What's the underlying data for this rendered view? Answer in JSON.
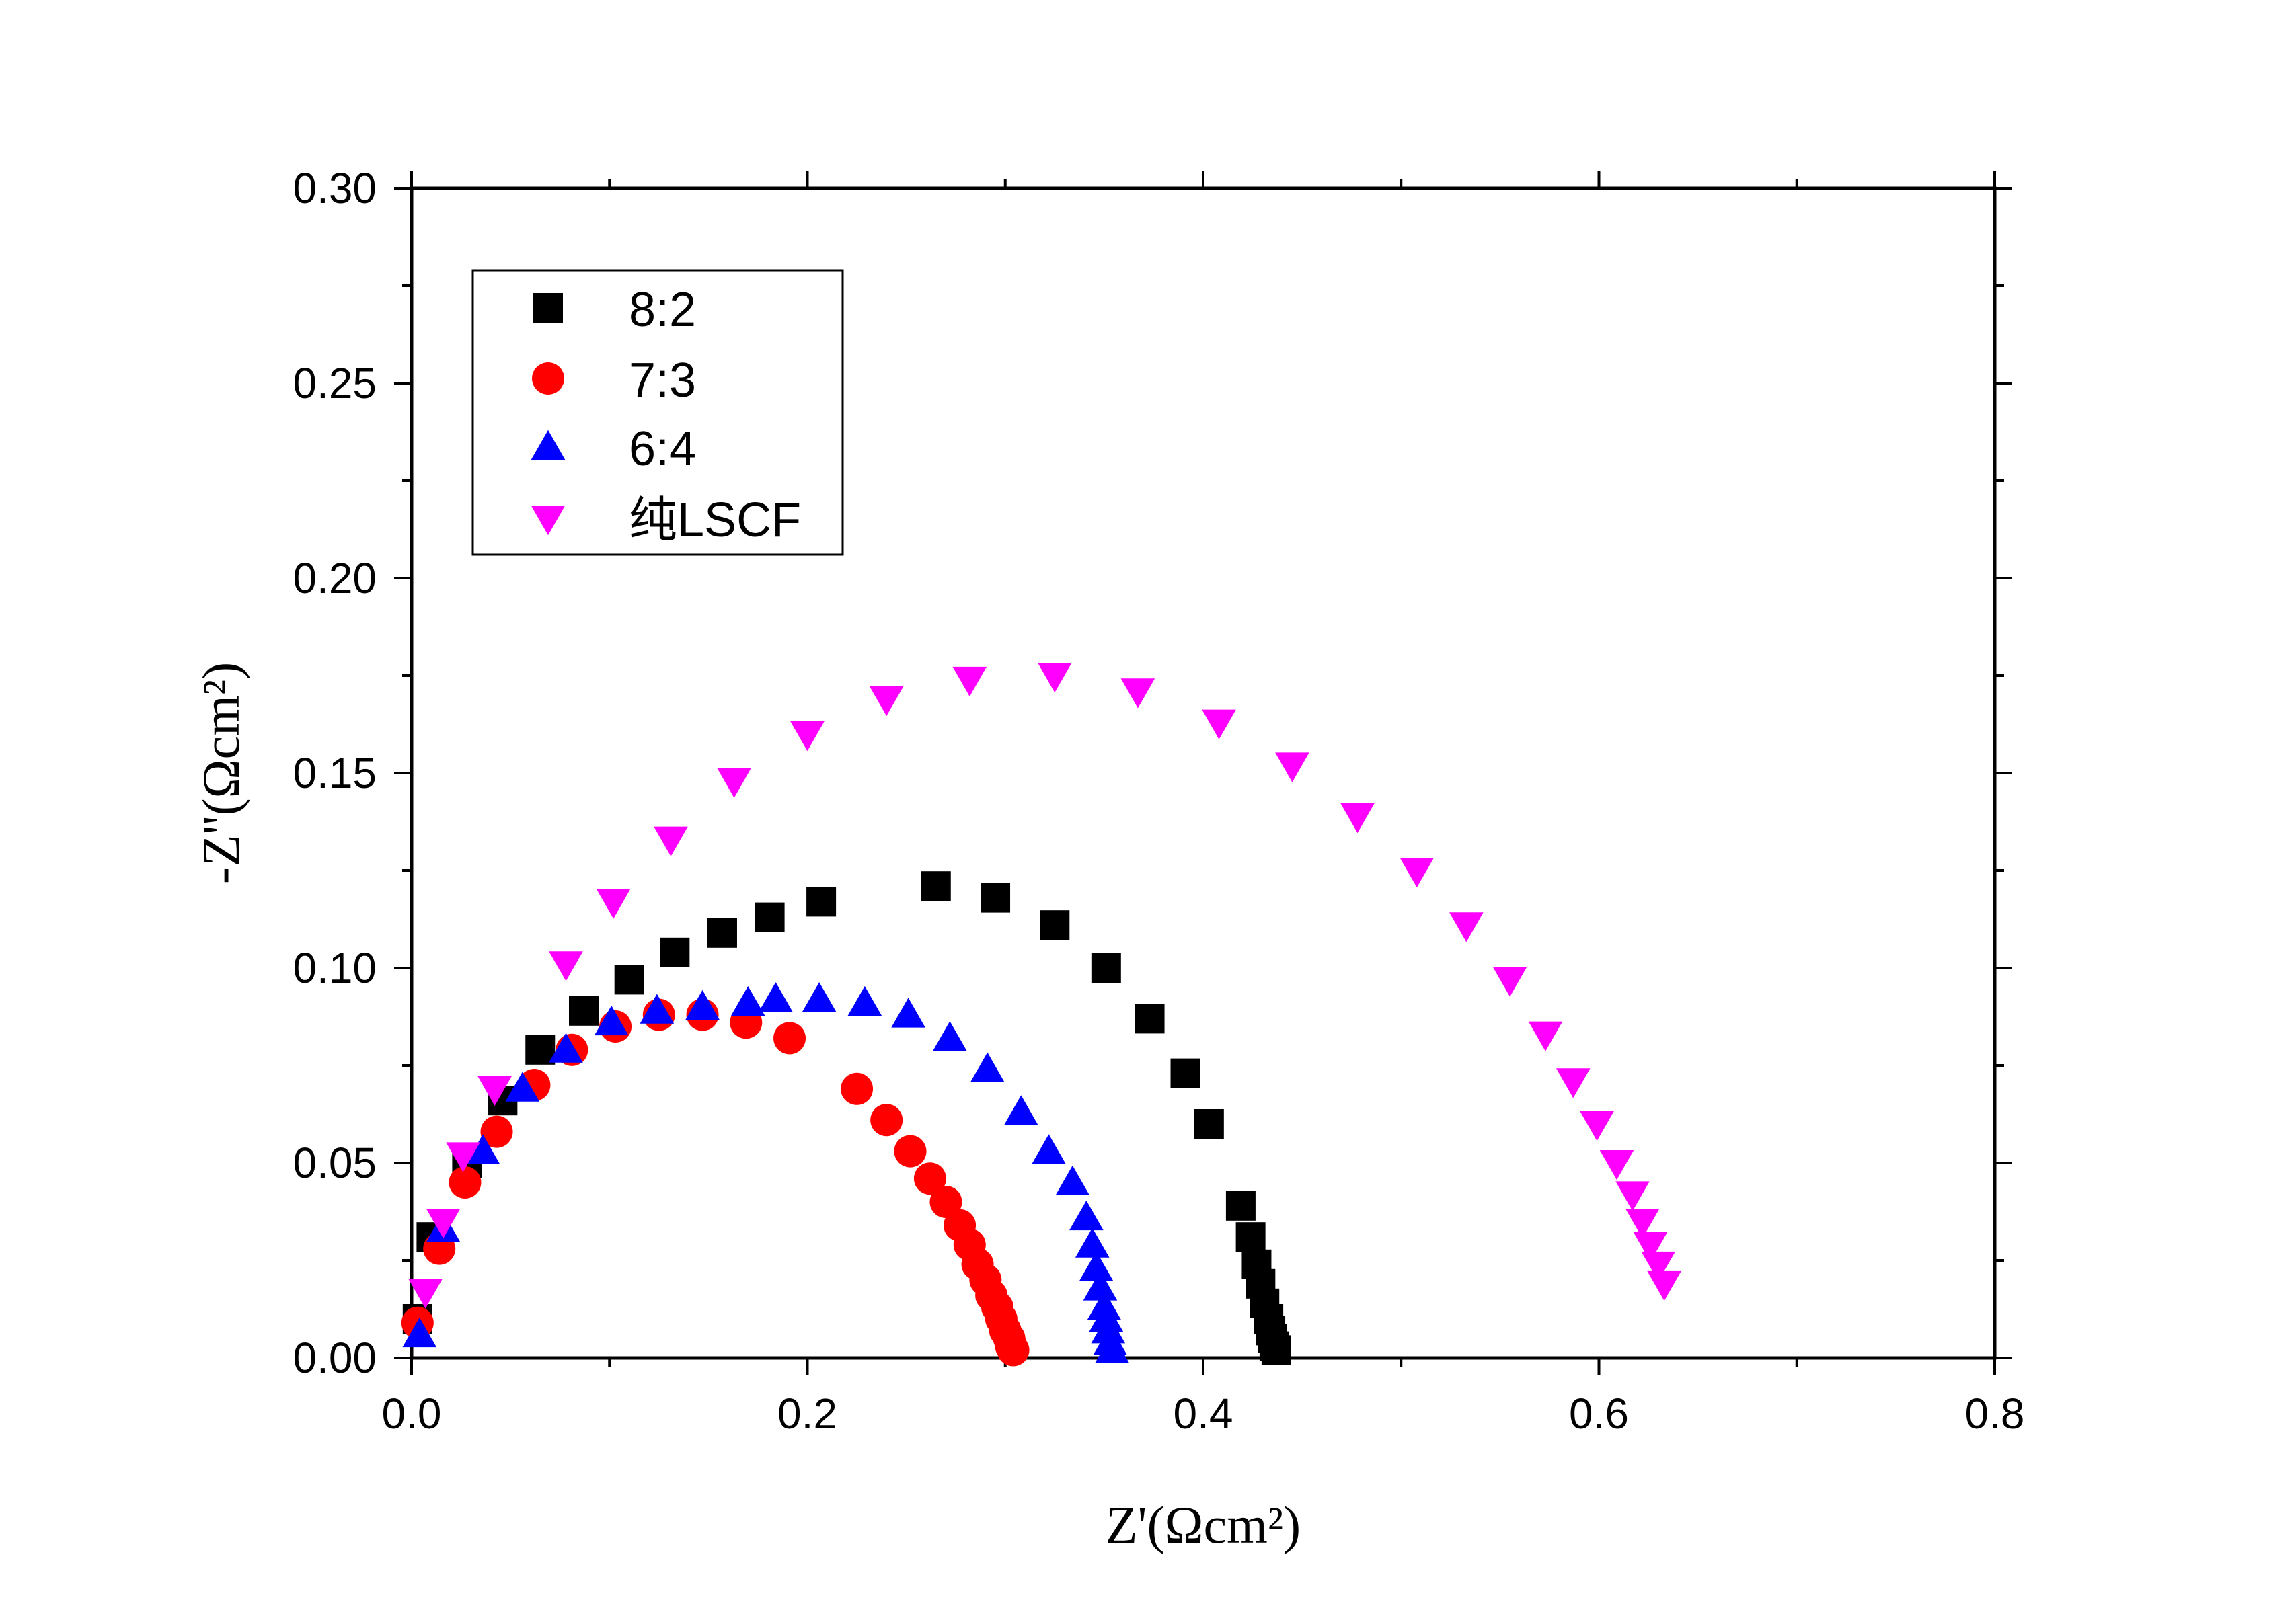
{
  "chart_data": {
    "type": "scatter",
    "title": "",
    "xlabel": "Z'(Ωcm²)",
    "ylabel": "-Z''(Ωcm²)",
    "xlim": [
      0.0,
      0.8
    ],
    "ylim": [
      0.0,
      0.3
    ],
    "x_ticks": [
      "0.0",
      "0.2",
      "0.4",
      "0.6",
      "0.8"
    ],
    "y_ticks": [
      "0.00",
      "0.05",
      "0.10",
      "0.15",
      "0.20",
      "0.25",
      "0.30"
    ],
    "grid": false,
    "legend_position": "top-left",
    "series": [
      {
        "name": "8:2",
        "marker": "square",
        "color": "#000000",
        "x": [
          0.003,
          0.01,
          0.028,
          0.046,
          0.065,
          0.087,
          0.11,
          0.133,
          0.157,
          0.181,
          0.207,
          0.265,
          0.295,
          0.325,
          0.351,
          0.373,
          0.391,
          0.403,
          0.419,
          0.424,
          0.427,
          0.429,
          0.431,
          0.433,
          0.434,
          0.435,
          0.436,
          0.437
        ],
        "y": [
          0.01,
          0.031,
          0.05,
          0.066,
          0.079,
          0.089,
          0.097,
          0.104,
          0.109,
          0.113,
          0.117,
          0.121,
          0.118,
          0.111,
          0.1,
          0.087,
          0.073,
          0.06,
          0.039,
          0.031,
          0.024,
          0.019,
          0.014,
          0.01,
          0.007,
          0.005,
          0.003,
          0.002
        ]
      },
      {
        "name": "7:3",
        "marker": "circle",
        "color": "#ff0000",
        "x": [
          0.003,
          0.014,
          0.027,
          0.043,
          0.062,
          0.081,
          0.103,
          0.125,
          0.147,
          0.169,
          0.191,
          0.225,
          0.24,
          0.252,
          0.262,
          0.27,
          0.277,
          0.282,
          0.286,
          0.29,
          0.293,
          0.296,
          0.298,
          0.3,
          0.302,
          0.303,
          0.304
        ],
        "y": [
          0.009,
          0.028,
          0.045,
          0.058,
          0.07,
          0.079,
          0.085,
          0.088,
          0.088,
          0.086,
          0.082,
          0.069,
          0.061,
          0.053,
          0.046,
          0.04,
          0.034,
          0.029,
          0.024,
          0.02,
          0.016,
          0.013,
          0.01,
          0.007,
          0.005,
          0.003,
          0.002
        ]
      },
      {
        "name": "6:4",
        "marker": "triangle-up",
        "color": "#0000ff",
        "x": [
          0.004,
          0.016,
          0.036,
          0.056,
          0.078,
          0.101,
          0.124,
          0.147,
          0.17,
          0.184,
          0.206,
          0.229,
          0.251,
          0.272,
          0.291,
          0.308,
          0.322,
          0.334,
          0.341,
          0.344,
          0.346,
          0.348,
          0.35,
          0.351,
          0.352,
          0.353,
          0.354
        ],
        "y": [
          0.006,
          0.033,
          0.053,
          0.069,
          0.079,
          0.086,
          0.089,
          0.09,
          0.091,
          0.092,
          0.092,
          0.091,
          0.088,
          0.082,
          0.074,
          0.063,
          0.053,
          0.045,
          0.036,
          0.029,
          0.023,
          0.018,
          0.013,
          0.01,
          0.007,
          0.004,
          0.002
        ]
      },
      {
        "name": "纯LSCF",
        "marker": "triangle-down",
        "color": "#ff00ff",
        "x": [
          0.007,
          0.016,
          0.026,
          0.042,
          0.078,
          0.102,
          0.131,
          0.163,
          0.2,
          0.24,
          0.282,
          0.325,
          0.367,
          0.408,
          0.445,
          0.478,
          0.508,
          0.533,
          0.555,
          0.573,
          0.587,
          0.599,
          0.609,
          0.617,
          0.622,
          0.626,
          0.63,
          0.633
        ],
        "y": [
          0.017,
          0.035,
          0.052,
          0.069,
          0.101,
          0.117,
          0.133,
          0.148,
          0.16,
          0.169,
          0.174,
          0.175,
          0.171,
          0.163,
          0.152,
          0.139,
          0.125,
          0.111,
          0.097,
          0.083,
          0.071,
          0.06,
          0.05,
          0.042,
          0.035,
          0.029,
          0.024,
          0.019
        ]
      }
    ]
  }
}
